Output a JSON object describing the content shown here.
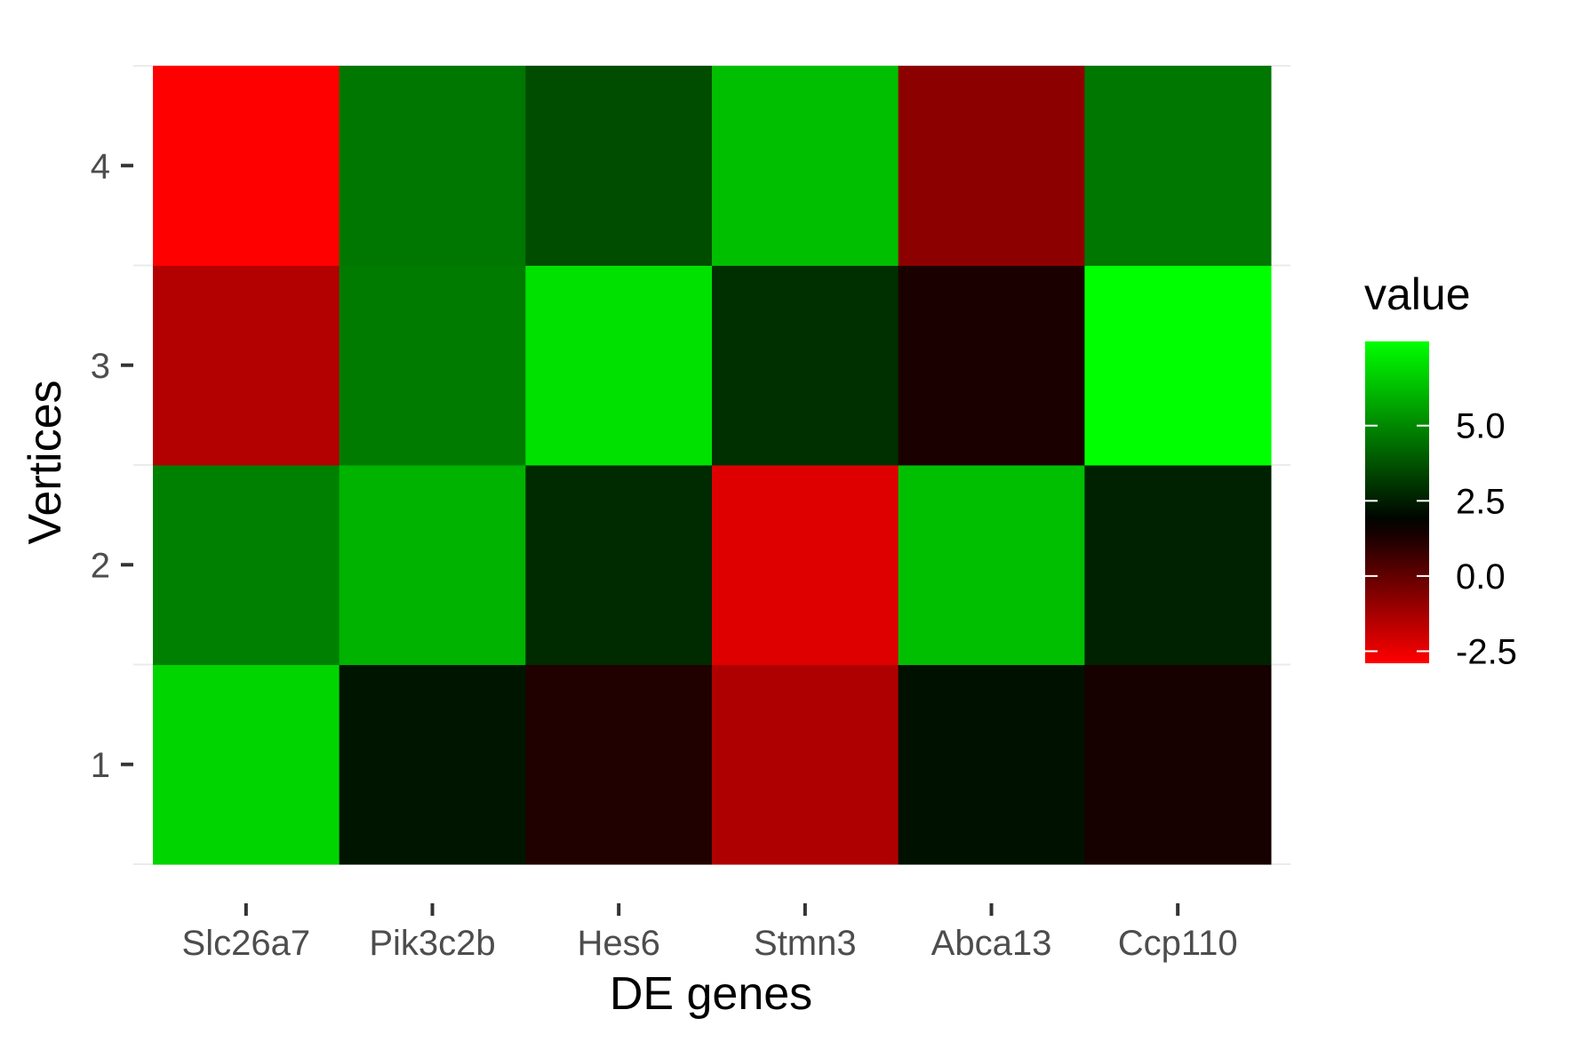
{
  "chart_data": {
    "type": "heatmap",
    "xlabel": "DE genes",
    "ylabel": "Vertices",
    "x_categories": [
      "Slc26a7",
      "Pik3c2b",
      "Hes6",
      "Stmn3",
      "Abca13",
      "Ccp110"
    ],
    "y_categories": [
      "1",
      "2",
      "3",
      "4"
    ],
    "values": [
      [
        6.8,
        2.3,
        1.2,
        -1.4,
        2.2,
        1.4
      ],
      [
        4.8,
        6.0,
        2.8,
        -2.3,
        6.3,
        2.6
      ],
      [
        -1.5,
        4.7,
        7.1,
        2.9,
        1.3,
        7.8
      ],
      [
        -2.9,
        4.6,
        3.6,
        6.3,
        -0.8,
        4.6
      ]
    ],
    "legend": {
      "title": "value",
      "ticks": [
        -2.5,
        0.0,
        2.5,
        5.0
      ],
      "tick_labels": [
        "-2.5",
        "0.0",
        "2.5",
        "5.0"
      ],
      "range": [
        -2.9,
        7.8
      ],
      "placement": "right"
    },
    "colors": {
      "low": "#ff0000",
      "mid": "#000000",
      "high": "#00ff00",
      "midpoint": 1.8
    },
    "grid": true
  }
}
